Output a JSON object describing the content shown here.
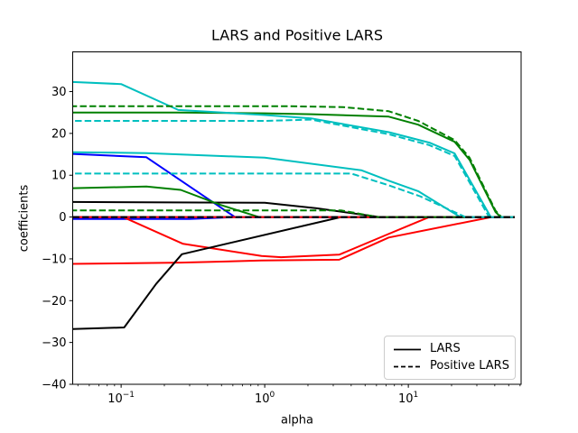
{
  "colors": {
    "b": "#0000ff",
    "r": "#ff0000",
    "g": "#008000",
    "c": "#00bfbf",
    "k": "#000000"
  },
  "chart_data": {
    "type": "line",
    "title": "LARS and Positive LARS",
    "xlabel": "alpha",
    "ylabel": "coefficients",
    "x_scale": "log",
    "xlim": [
      0.046,
      61
    ],
    "ylim": [
      -40,
      39.5
    ],
    "grid": false,
    "xticks": [
      {
        "value": 0.1,
        "base": "10",
        "exp": "−1"
      },
      {
        "value": 1,
        "base": "10",
        "exp": "0"
      },
      {
        "value": 10,
        "base": "10",
        "exp": "1"
      }
    ],
    "yticks": [
      {
        "value": -40,
        "label": "−40"
      },
      {
        "value": -30,
        "label": "−30"
      },
      {
        "value": -20,
        "label": "−20"
      },
      {
        "value": -10,
        "label": "−10"
      },
      {
        "value": 0,
        "label": "0"
      },
      {
        "value": 10,
        "label": "10"
      },
      {
        "value": 20,
        "label": "20"
      },
      {
        "value": 30,
        "label": "30"
      }
    ],
    "legend": {
      "position": "lower right",
      "entries": [
        "LARS",
        "Positive LARS"
      ]
    },
    "series": [
      {
        "name": "lars-coef-blue-1",
        "color": "b",
        "style": "solid",
        "points": [
          [
            0.046,
            15.1
          ],
          [
            0.15,
            14.3
          ],
          [
            0.62,
            0
          ],
          [
            55,
            0
          ]
        ]
      },
      {
        "name": "lars-coef-red-1",
        "color": "r",
        "style": "solid",
        "points": [
          [
            0.046,
            -11.2
          ],
          [
            0.26,
            -10.9
          ],
          [
            0.95,
            -10.4
          ],
          [
            3.3,
            -10.2
          ],
          [
            7.3,
            -4.9
          ],
          [
            38,
            0
          ],
          [
            55,
            0
          ]
        ]
      },
      {
        "name": "lars-coef-green-1",
        "color": "g",
        "style": "solid",
        "points": [
          [
            0.046,
            25.0
          ],
          [
            0.25,
            25.0
          ],
          [
            1.0,
            24.8
          ],
          [
            2.1,
            24.6
          ],
          [
            7.3,
            24.0
          ],
          [
            11.7,
            22.1
          ],
          [
            21,
            18.0
          ],
          [
            26.7,
            13.7
          ],
          [
            40.5,
            1.2
          ],
          [
            44,
            0
          ],
          [
            55,
            0
          ]
        ]
      },
      {
        "name": "lars-coef-cyan-1",
        "color": "c",
        "style": "solid",
        "points": [
          [
            0.046,
            32.3
          ],
          [
            0.1,
            31.8
          ],
          [
            0.25,
            25.6
          ],
          [
            1.0,
            24.4
          ],
          [
            2.1,
            23.6
          ],
          [
            7.3,
            20.3
          ],
          [
            14,
            17.8
          ],
          [
            21,
            15.2
          ],
          [
            37.5,
            0
          ],
          [
            55,
            0
          ]
        ]
      },
      {
        "name": "lars-coef-black-1",
        "color": "k",
        "style": "solid",
        "points": [
          [
            0.046,
            3.6
          ],
          [
            1.0,
            3.4
          ],
          [
            2.3,
            2.1
          ],
          [
            6.3,
            0
          ],
          [
            55,
            0
          ]
        ]
      },
      {
        "name": "lars-coef-blue-2",
        "color": "b",
        "style": "solid",
        "points": [
          [
            0.046,
            -0.45
          ],
          [
            0.3,
            -0.45
          ],
          [
            0.62,
            0
          ],
          [
            55,
            0
          ]
        ]
      },
      {
        "name": "lars-coef-red-2",
        "color": "r",
        "style": "solid",
        "points": [
          [
            0.046,
            0
          ],
          [
            0.103,
            0
          ],
          [
            0.27,
            -6.4
          ],
          [
            0.95,
            -9.3
          ],
          [
            1.3,
            -9.6
          ],
          [
            3.3,
            -9.0
          ],
          [
            7,
            -4.3
          ],
          [
            14,
            0
          ],
          [
            55,
            0
          ]
        ]
      },
      {
        "name": "lars-coef-green-2",
        "color": "g",
        "style": "solid",
        "points": [
          [
            0.046,
            6.9
          ],
          [
            0.15,
            7.3
          ],
          [
            0.26,
            6.5
          ],
          [
            0.49,
            2.9
          ],
          [
            0.91,
            0
          ],
          [
            55,
            0
          ]
        ]
      },
      {
        "name": "lars-coef-cyan-2",
        "color": "c",
        "style": "solid",
        "points": [
          [
            0.046,
            15.5
          ],
          [
            0.15,
            15.3
          ],
          [
            1.0,
            14.2
          ],
          [
            4.7,
            11.2
          ],
          [
            7.3,
            8.7
          ],
          [
            11.7,
            6.2
          ],
          [
            23,
            0
          ],
          [
            55,
            0
          ]
        ]
      },
      {
        "name": "lars-coef-black-2",
        "color": "k",
        "style": "solid",
        "points": [
          [
            0.046,
            -26.8
          ],
          [
            0.105,
            -26.4
          ],
          [
            0.175,
            -16.0
          ],
          [
            0.265,
            -8.9
          ],
          [
            3.4,
            0
          ],
          [
            55,
            0
          ]
        ]
      },
      {
        "name": "positive-lars-coef-blue-1",
        "color": "b",
        "style": "dashed",
        "dash_offset": 1.3,
        "points": [
          [
            0.046,
            0
          ],
          [
            55,
            0
          ]
        ]
      },
      {
        "name": "positive-lars-coef-red-1",
        "color": "r",
        "style": "dashed",
        "dash_offset": 5.3,
        "points": [
          [
            0.046,
            0
          ],
          [
            55,
            0
          ]
        ]
      },
      {
        "name": "positive-lars-coef-green-1",
        "color": "g",
        "style": "dashed",
        "dash_offset": 2.6,
        "points": [
          [
            0.046,
            26.5
          ],
          [
            1.5,
            26.5
          ],
          [
            3.5,
            26.3
          ],
          [
            7.3,
            25.3
          ],
          [
            11.7,
            23.0
          ],
          [
            21,
            18.4
          ],
          [
            26.7,
            14.2
          ],
          [
            40.5,
            1.5
          ],
          [
            44.5,
            0
          ],
          [
            55,
            0
          ]
        ]
      },
      {
        "name": "positive-lars-coef-cyan-1",
        "color": "c",
        "style": "dashed",
        "dash_offset": 8,
        "points": [
          [
            0.046,
            23.0
          ],
          [
            1.0,
            23.0
          ],
          [
            2.1,
            23.3
          ],
          [
            7.3,
            19.8
          ],
          [
            14,
            17.2
          ],
          [
            21,
            14.6
          ],
          [
            36.5,
            0
          ],
          [
            55,
            0
          ]
        ]
      },
      {
        "name": "positive-lars-coef-black-1",
        "color": "k",
        "style": "dashed",
        "dash_offset": 0,
        "points": [
          [
            0.046,
            0
          ],
          [
            55,
            0
          ]
        ]
      },
      {
        "name": "positive-lars-coef-blue-2",
        "color": "b",
        "style": "dashed",
        "dash_offset": 3.9,
        "points": [
          [
            0.046,
            0
          ],
          [
            55,
            0
          ]
        ]
      },
      {
        "name": "positive-lars-coef-red-2",
        "color": "r",
        "style": "dashed",
        "dash_offset": 5.3,
        "points": [
          [
            0.046,
            0
          ],
          [
            55,
            0
          ]
        ]
      },
      {
        "name": "positive-lars-coef-green-2",
        "color": "g",
        "style": "dashed",
        "dash_offset": 2.6,
        "points": [
          [
            0.046,
            1.6
          ],
          [
            3.4,
            1.6
          ],
          [
            6.1,
            0
          ],
          [
            55,
            0
          ]
        ]
      },
      {
        "name": "positive-lars-coef-cyan-2",
        "color": "c",
        "style": "dashed",
        "dash_offset": 8,
        "points": [
          [
            0.046,
            10.4
          ],
          [
            4.0,
            10.4
          ],
          [
            7.3,
            7.6
          ],
          [
            12,
            5.0
          ],
          [
            25,
            0
          ],
          [
            55,
            0
          ]
        ]
      },
      {
        "name": "positive-lars-coef-black-2",
        "color": "k",
        "style": "dashed",
        "dash_offset": 0,
        "points": [
          [
            0.046,
            0
          ],
          [
            55,
            0
          ]
        ]
      }
    ]
  }
}
